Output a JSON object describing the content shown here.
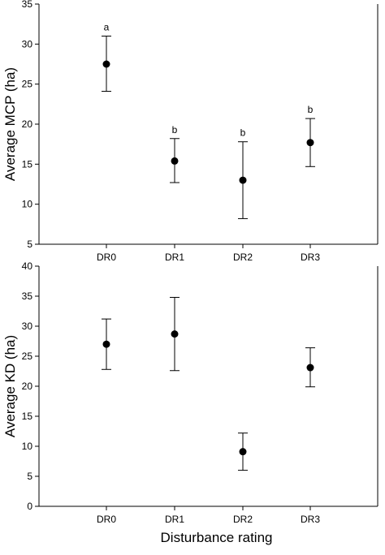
{
  "chart_data": [
    {
      "type": "scatter",
      "categories": [
        "DR0",
        "DR1",
        "DR2",
        "DR3"
      ],
      "ylabel": "Average MCP (ha)",
      "xlabel": "",
      "ylim": [
        5,
        35
      ],
      "yticks": [
        5,
        10,
        15,
        20,
        25,
        30,
        35
      ],
      "series": [
        {
          "values": [
            27.5,
            15.4,
            13.0,
            17.7
          ],
          "error_low": [
            24.1,
            12.7,
            8.2,
            14.7
          ],
          "error_high": [
            31.0,
            18.2,
            17.8,
            20.7
          ]
        }
      ],
      "annotations": [
        "a",
        "b",
        "b",
        "b"
      ],
      "grid": false
    },
    {
      "type": "scatter",
      "categories": [
        "DR0",
        "DR1",
        "DR2",
        "DR3"
      ],
      "ylabel": "Average KD (ha)",
      "xlabel": "Disturbance rating",
      "ylim": [
        0,
        40
      ],
      "yticks": [
        0,
        5,
        10,
        15,
        20,
        25,
        30,
        35,
        40
      ],
      "series": [
        {
          "values": [
            27.0,
            28.7,
            9.1,
            23.1
          ],
          "error_low": [
            22.8,
            22.6,
            6.0,
            19.9
          ],
          "error_high": [
            31.2,
            34.8,
            12.2,
            26.4
          ]
        }
      ],
      "annotations": [],
      "grid": false
    }
  ]
}
